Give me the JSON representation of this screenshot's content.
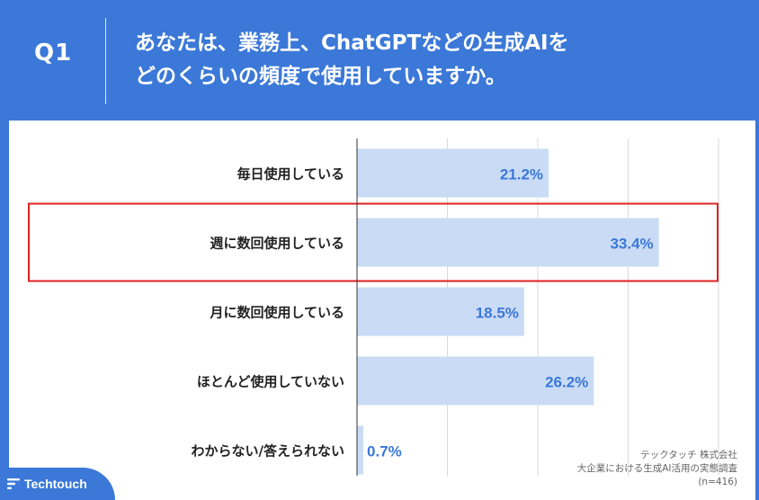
{
  "header": {
    "question_number": "Q1",
    "question_line1": "あなたは、業務上、ChatGPTなどの生成AIを",
    "question_line2": "どのくらいの頻度で使用していますか。"
  },
  "chart_data": {
    "type": "bar",
    "orientation": "horizontal",
    "categories": [
      "毎日使用している",
      "週に数回使用している",
      "月に数回使用している",
      "ほとんど使用していない",
      "わからない/答えられない"
    ],
    "values": [
      21.2,
      33.4,
      18.5,
      26.2,
      0.7
    ],
    "value_labels": [
      "21.2%",
      "33.4%",
      "18.5%",
      "26.2%",
      "0.7%"
    ],
    "xlim": [
      0,
      40
    ],
    "grid": true,
    "highlighted_category": "週に数回使用している",
    "bar_color": "#cadcf5",
    "label_color": "#3b78d8",
    "highlight_color": "#e02020"
  },
  "source": {
    "line1": "テックタッチ 株式会社",
    "line2": "大企業における生成AI活用の実態調査",
    "line3": "(n=416)"
  },
  "brand": {
    "name": "Techtouch",
    "color": "#3b78d8",
    "icon": "techtouch-logo-icon"
  }
}
